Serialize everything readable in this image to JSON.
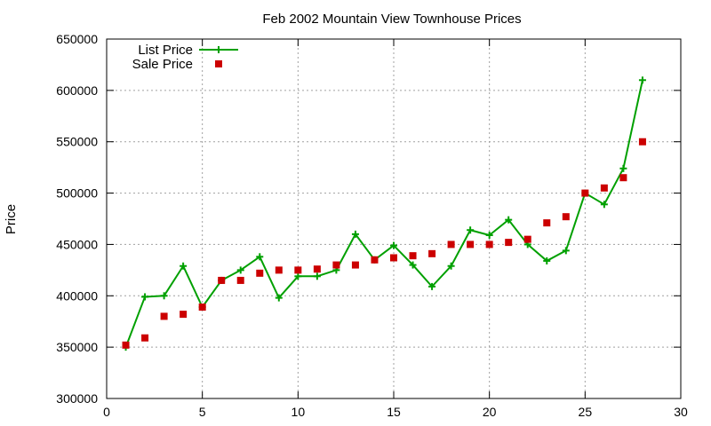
{
  "chart_data": {
    "type": "line",
    "title": "Feb 2002 Mountain View Townhouse Prices",
    "xlabel": "",
    "ylabel": "Price",
    "xlim": [
      0,
      30
    ],
    "ylim": [
      300000,
      650000
    ],
    "x_ticks": [
      0,
      5,
      10,
      15,
      20,
      25,
      30
    ],
    "y_ticks": [
      300000,
      350000,
      400000,
      450000,
      500000,
      550000,
      600000,
      650000
    ],
    "grid": true,
    "legend_position": "top-left",
    "series": [
      {
        "name": "List Price",
        "style": "line-with-plus-markers",
        "color": "#00a000",
        "x": [
          1,
          2,
          3,
          4,
          5,
          6,
          7,
          8,
          9,
          10,
          11,
          12,
          13,
          14,
          15,
          16,
          17,
          18,
          19,
          20,
          21,
          22,
          23,
          24,
          25,
          26,
          27,
          28
        ],
        "y": [
          350000,
          399000,
          400000,
          429000,
          389000,
          415000,
          425000,
          438000,
          398000,
          419000,
          419000,
          425000,
          460000,
          435000,
          449000,
          430000,
          409000,
          429000,
          464000,
          459000,
          474000,
          450000,
          434000,
          444000,
          500000,
          489000,
          524000,
          610000
        ]
      },
      {
        "name": "Sale Price",
        "style": "square-markers",
        "color": "#cc0000",
        "x": [
          1,
          2,
          3,
          4,
          5,
          6,
          7,
          8,
          9,
          10,
          11,
          12,
          13,
          14,
          15,
          16,
          17,
          18,
          19,
          20,
          21,
          22,
          23,
          24,
          25,
          26,
          27,
          28
        ],
        "y": [
          352000,
          359000,
          380000,
          382000,
          389000,
          415000,
          415000,
          422000,
          425000,
          425000,
          426000,
          430000,
          430000,
          435000,
          437000,
          439000,
          441000,
          450000,
          450000,
          450000,
          452000,
          455000,
          471000,
          477000,
          500000,
          505000,
          515000,
          550000
        ]
      }
    ]
  }
}
